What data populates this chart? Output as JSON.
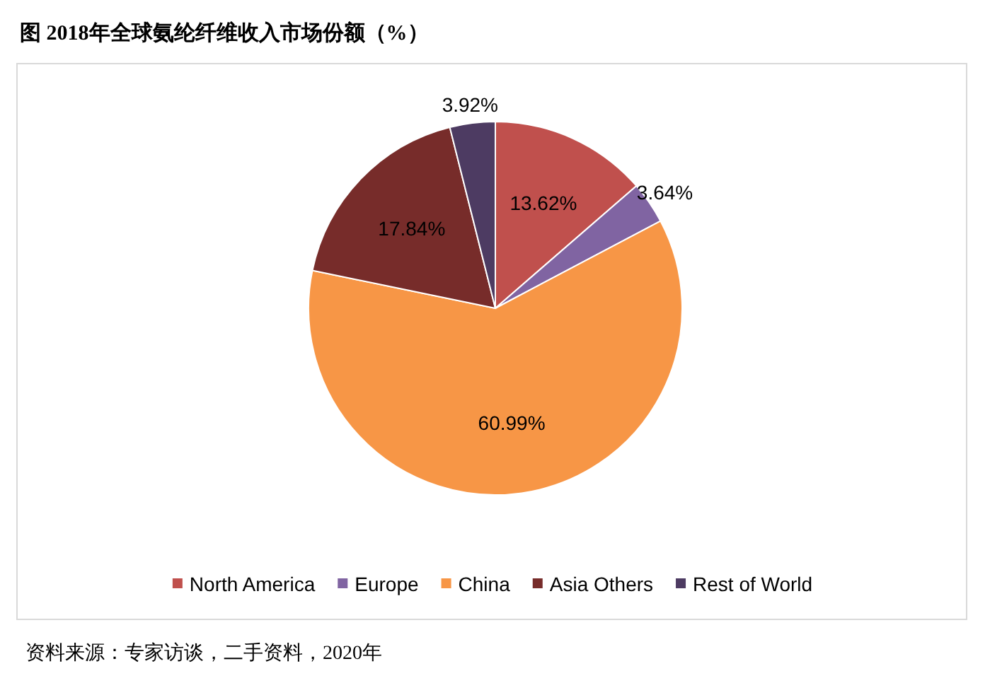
{
  "chart_data": {
    "type": "pie",
    "title": "图 2018年全球氨纶纤维收入市场份额（%）",
    "categories": [
      "North America",
      "Europe",
      "China",
      "Asia Others",
      "Rest of World"
    ],
    "values": [
      13.62,
      3.64,
      60.99,
      17.84,
      3.92
    ],
    "colors": [
      "#c0504d",
      "#8064a2",
      "#f79646",
      "#772c2a",
      "#4d3b62"
    ],
    "value_labels": [
      "13.62%",
      "3.64%",
      "60.99%",
      "17.84%",
      "3.92%"
    ],
    "legend": "bottom",
    "annotations": [
      "资料来源：专家访谈，二手资料，2020年"
    ]
  }
}
